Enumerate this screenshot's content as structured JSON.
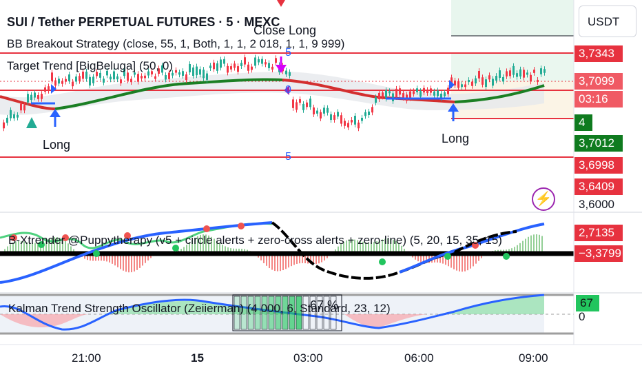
{
  "header": {
    "symbol_title": "SUI / Tether PERPETUAL FUTURES · 5 · MEXC",
    "indicator_1": "BB Breakout Strategy (close, 55, 1, Both, 1, 1, 2 018, 1, 1, 9 999)",
    "indicator_2": "Target Trend [BigBeluga] (50, 0)",
    "currency": "USDT"
  },
  "annotations": {
    "close_long": "Close Long",
    "long_1": "Long",
    "long_2": "Long",
    "band_num_top": "5",
    "band_num_bottom": "5",
    "zero_num": "0",
    "bolt_icon": "bolt-icon"
  },
  "price_labels": [
    {
      "text": "3,7343",
      "style": "red"
    },
    {
      "text": "3,7099",
      "style": "lightred"
    },
    {
      "text": "03:16",
      "style": "lightred"
    },
    {
      "text": "4",
      "style": "green-small"
    },
    {
      "text": "3,7012",
      "style": "green"
    },
    {
      "text": "3,6998",
      "style": "red"
    },
    {
      "text": "3,6409",
      "style": "red"
    },
    {
      "text": "3,6000",
      "style": "plain"
    },
    {
      "text": "2,7135",
      "style": "red"
    },
    {
      "text": "−3,3799",
      "style": "red"
    },
    {
      "text": "67",
      "style": "lime"
    },
    {
      "text": "0",
      "style": "plain"
    }
  ],
  "panes": {
    "xtrender_label": "B-Xtrender @Puppytherapy (v5 + circle alerts + zero-cross alerts + zero-line) (5, 20, 15, 35, 15)",
    "kalman_label": "Kalman Trend Strength Oscillator (Zeiierman) (4 000, 6, Standard, 23, 12)",
    "kalman_pct": "67 %"
  },
  "time_axis": [
    "21:00",
    "15",
    "03:00",
    "06:00",
    "09:00"
  ],
  "colors": {
    "up": "#22ab94",
    "down": "#f23645",
    "trend_green": "#1b7f24",
    "trend_red": "#d32f2f",
    "band_red": "#e7323f",
    "xtrender_blue": "#2962ff",
    "kalman_green": "#22c55e"
  }
}
